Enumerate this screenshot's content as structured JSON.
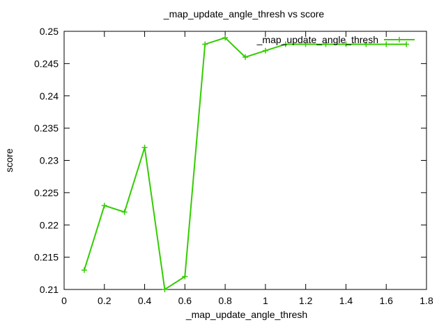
{
  "chart_data": {
    "type": "line",
    "title": "_map_update_angle_thresh vs score",
    "xlabel": "_map_update_angle_thresh",
    "ylabel": "score",
    "xlim": [
      0,
      1.8
    ],
    "ylim": [
      0.21,
      0.25
    ],
    "xticks": [
      0,
      0.2,
      0.4,
      0.6,
      0.8,
      1,
      1.2,
      1.4,
      1.6,
      1.8
    ],
    "xtick_labels": [
      "0",
      "0.2",
      "0.4",
      "0.6",
      "0.8",
      "1",
      "1.2",
      "1.4",
      "1.6",
      "1.8"
    ],
    "yticks": [
      0.21,
      0.215,
      0.22,
      0.225,
      0.23,
      0.235,
      0.24,
      0.245,
      0.25
    ],
    "ytick_labels": [
      "0.21",
      "0.215",
      "0.22",
      "0.225",
      "0.23",
      "0.235",
      "0.24",
      "0.245",
      "0.25"
    ],
    "grid": false,
    "legend_position": "top-right",
    "series": [
      {
        "name": "_map_update_angle_thresh",
        "color": "#33cc00",
        "marker": "plus",
        "x": [
          0.1,
          0.2,
          0.3,
          0.4,
          0.5,
          0.6,
          0.7,
          0.8,
          0.9,
          1.0,
          1.1,
          1.2,
          1.3,
          1.4,
          1.5,
          1.6,
          1.7
        ],
        "y": [
          0.213,
          0.223,
          0.222,
          0.232,
          0.21,
          0.212,
          0.248,
          0.249,
          0.246,
          0.247,
          0.248,
          0.248,
          0.248,
          0.248,
          0.248,
          0.248,
          0.248
        ]
      }
    ]
  }
}
